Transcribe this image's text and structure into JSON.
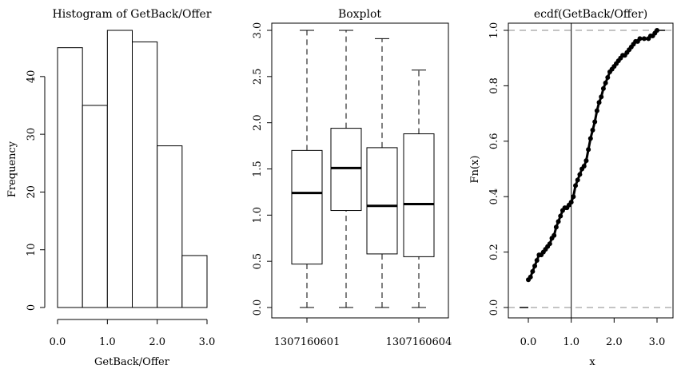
{
  "chart_data": [
    {
      "type": "bar",
      "title": "Histogram of GetBack/Offer",
      "xlabel": "GetBack/Offer",
      "ylabel": "Frequency",
      "bin_width": 0.5,
      "bin_edges": [
        0.0,
        0.5,
        1.0,
        1.5,
        2.0,
        2.5,
        3.0
      ],
      "values": [
        45,
        35,
        48,
        46,
        28,
        9
      ],
      "xlim": [
        0.0,
        3.0
      ],
      "ylim": [
        0,
        48
      ],
      "x_ticks": [
        {
          "value": 0.0,
          "label": "0.0"
        },
        {
          "value": 1.0,
          "label": "1.0"
        },
        {
          "value": 2.0,
          "label": "2.0"
        },
        {
          "value": 3.0,
          "label": "3.0"
        }
      ],
      "y_ticks": [
        {
          "value": 0,
          "label": "0"
        },
        {
          "value": 10,
          "label": "10"
        },
        {
          "value": 20,
          "label": "20"
        },
        {
          "value": 30,
          "label": "30"
        },
        {
          "value": 40,
          "label": "40"
        }
      ]
    },
    {
      "type": "boxplot",
      "title": "Boxplot",
      "category_labels_shown": [
        {
          "index": 0,
          "label": "1307160601"
        },
        {
          "index": 3,
          "label": "1307160604"
        }
      ],
      "boxes": [
        {
          "whisker_low": 0.0,
          "q1": 0.47,
          "median": 1.24,
          "q3": 1.7,
          "whisker_high": 3.0
        },
        {
          "whisker_low": 0.0,
          "q1": 1.05,
          "median": 1.51,
          "q3": 1.94,
          "whisker_high": 3.0
        },
        {
          "whisker_low": 0.0,
          "q1": 0.58,
          "median": 1.1,
          "q3": 1.73,
          "whisker_high": 2.91
        },
        {
          "whisker_low": 0.0,
          "q1": 0.55,
          "median": 1.12,
          "q3": 1.88,
          "whisker_high": 2.57
        }
      ],
      "ylim": [
        -0.1,
        3.1
      ],
      "y_ticks": [
        {
          "value": 0.0,
          "label": "0.0"
        },
        {
          "value": 0.5,
          "label": "0.5"
        },
        {
          "value": 1.0,
          "label": "1.0"
        },
        {
          "value": 1.5,
          "label": "1.5"
        },
        {
          "value": 2.0,
          "label": "2.0"
        },
        {
          "value": 2.5,
          "label": "2.5"
        },
        {
          "value": 3.0,
          "label": "3.0"
        }
      ]
    },
    {
      "type": "scatter",
      "title": "ecdf(GetBack/Offer)",
      "xlabel": "x",
      "ylabel": "Fn(x)",
      "xlim": [
        -0.2,
        3.2
      ],
      "ylim": [
        -0.02,
        1.02
      ],
      "reference_lines": {
        "horizontal_dashed": [
          0.0,
          1.0
        ],
        "vertical_solid": [
          1.0
        ]
      },
      "curve_points": [
        [
          0.0,
          0.1
        ],
        [
          0.05,
          0.11
        ],
        [
          0.1,
          0.13
        ],
        [
          0.15,
          0.15
        ],
        [
          0.2,
          0.17
        ],
        [
          0.25,
          0.19
        ],
        [
          0.3,
          0.19
        ],
        [
          0.35,
          0.2
        ],
        [
          0.4,
          0.21
        ],
        [
          0.45,
          0.22
        ],
        [
          0.5,
          0.23
        ],
        [
          0.55,
          0.25
        ],
        [
          0.6,
          0.26
        ],
        [
          0.65,
          0.29
        ],
        [
          0.7,
          0.31
        ],
        [
          0.75,
          0.33
        ],
        [
          0.8,
          0.35
        ],
        [
          0.85,
          0.36
        ],
        [
          0.9,
          0.36
        ],
        [
          0.95,
          0.37
        ],
        [
          1.0,
          0.38
        ],
        [
          1.05,
          0.4
        ],
        [
          1.1,
          0.44
        ],
        [
          1.15,
          0.46
        ],
        [
          1.2,
          0.48
        ],
        [
          1.25,
          0.5
        ],
        [
          1.3,
          0.51
        ],
        [
          1.35,
          0.53
        ],
        [
          1.4,
          0.57
        ],
        [
          1.45,
          0.61
        ],
        [
          1.5,
          0.64
        ],
        [
          1.55,
          0.67
        ],
        [
          1.6,
          0.71
        ],
        [
          1.65,
          0.74
        ],
        [
          1.7,
          0.76
        ],
        [
          1.75,
          0.79
        ],
        [
          1.8,
          0.81
        ],
        [
          1.85,
          0.83
        ],
        [
          1.9,
          0.85
        ],
        [
          1.95,
          0.86
        ],
        [
          2.0,
          0.87
        ],
        [
          2.05,
          0.88
        ],
        [
          2.1,
          0.89
        ],
        [
          2.15,
          0.9
        ],
        [
          2.2,
          0.91
        ],
        [
          2.25,
          0.91
        ],
        [
          2.3,
          0.92
        ],
        [
          2.35,
          0.93
        ],
        [
          2.4,
          0.94
        ],
        [
          2.45,
          0.95
        ],
        [
          2.5,
          0.96
        ],
        [
          2.55,
          0.96
        ],
        [
          2.6,
          0.97
        ],
        [
          2.7,
          0.97
        ],
        [
          2.8,
          0.97
        ],
        [
          2.85,
          0.98
        ],
        [
          2.9,
          0.98
        ],
        [
          2.95,
          0.99
        ],
        [
          3.0,
          1.0
        ]
      ],
      "x_ticks": [
        {
          "value": 0.0,
          "label": "0.0"
        },
        {
          "value": 1.0,
          "label": "1.0"
        },
        {
          "value": 2.0,
          "label": "2.0"
        },
        {
          "value": 3.0,
          "label": "3.0"
        }
      ],
      "y_ticks": [
        {
          "value": 0.0,
          "label": "0.0"
        },
        {
          "value": 0.2,
          "label": "0.2"
        },
        {
          "value": 0.4,
          "label": "0.4"
        },
        {
          "value": 0.6,
          "label": "0.6"
        },
        {
          "value": 0.8,
          "label": "0.8"
        },
        {
          "value": 1.0,
          "label": "1.0"
        }
      ]
    }
  ]
}
